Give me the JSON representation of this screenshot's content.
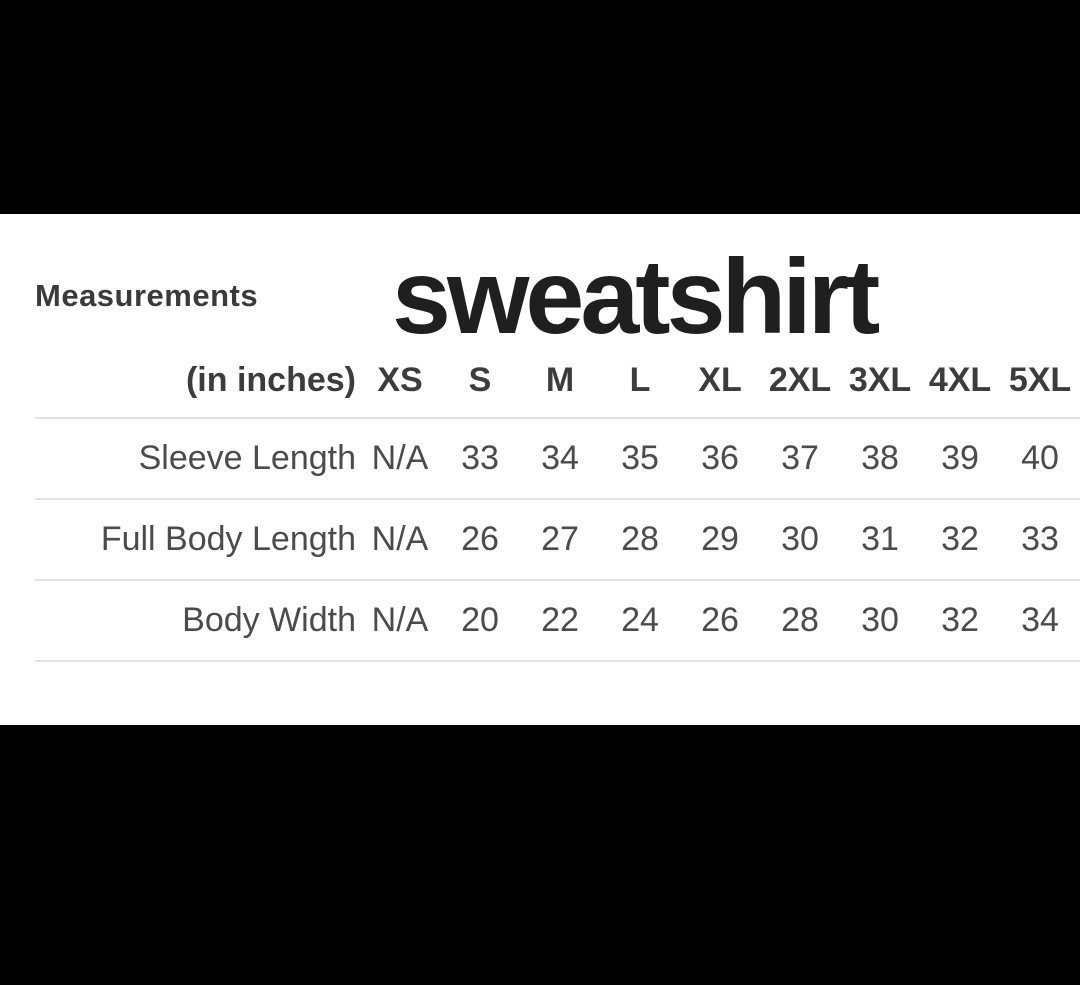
{
  "masthead": {
    "section_label": "Measurements",
    "product_title": "sweatshirt"
  },
  "size_chart": {
    "unit_label": "(in inches)",
    "sizes": [
      "XS",
      "S",
      "M",
      "L",
      "XL",
      "2XL",
      "3XL",
      "4XL",
      "5XL"
    ],
    "rows": [
      {
        "label": "Sleeve Length",
        "values": [
          "N/A",
          "33",
          "34",
          "35",
          "36",
          "37",
          "38",
          "39",
          "40"
        ]
      },
      {
        "label": "Full Body Length",
        "values": [
          "N/A",
          "26",
          "27",
          "28",
          "29",
          "30",
          "31",
          "32",
          "33"
        ]
      },
      {
        "label": "Body Width",
        "values": [
          "N/A",
          "20",
          "22",
          "24",
          "26",
          "28",
          "30",
          "32",
          "34"
        ]
      }
    ]
  },
  "chart_data": {
    "type": "table",
    "title": "sweatshirt",
    "subtitle": "Measurements (in inches)",
    "columns": [
      "Measurement",
      "XS",
      "S",
      "M",
      "L",
      "XL",
      "2XL",
      "3XL",
      "4XL",
      "5XL"
    ],
    "rows": [
      [
        "Sleeve Length",
        "N/A",
        33,
        34,
        35,
        36,
        37,
        38,
        39,
        40
      ],
      [
        "Full Body Length",
        "N/A",
        26,
        27,
        28,
        29,
        30,
        31,
        32,
        33
      ],
      [
        "Body Width",
        "N/A",
        20,
        22,
        24,
        26,
        28,
        30,
        32,
        34
      ]
    ]
  },
  "colors": {
    "letterbox": "#000000",
    "sheet_background": "#ffffff",
    "title_text": "#1f1f1f",
    "header_text": "#3c3c3c",
    "body_text": "#4b4b4b",
    "divider": "#e2e2e2"
  }
}
